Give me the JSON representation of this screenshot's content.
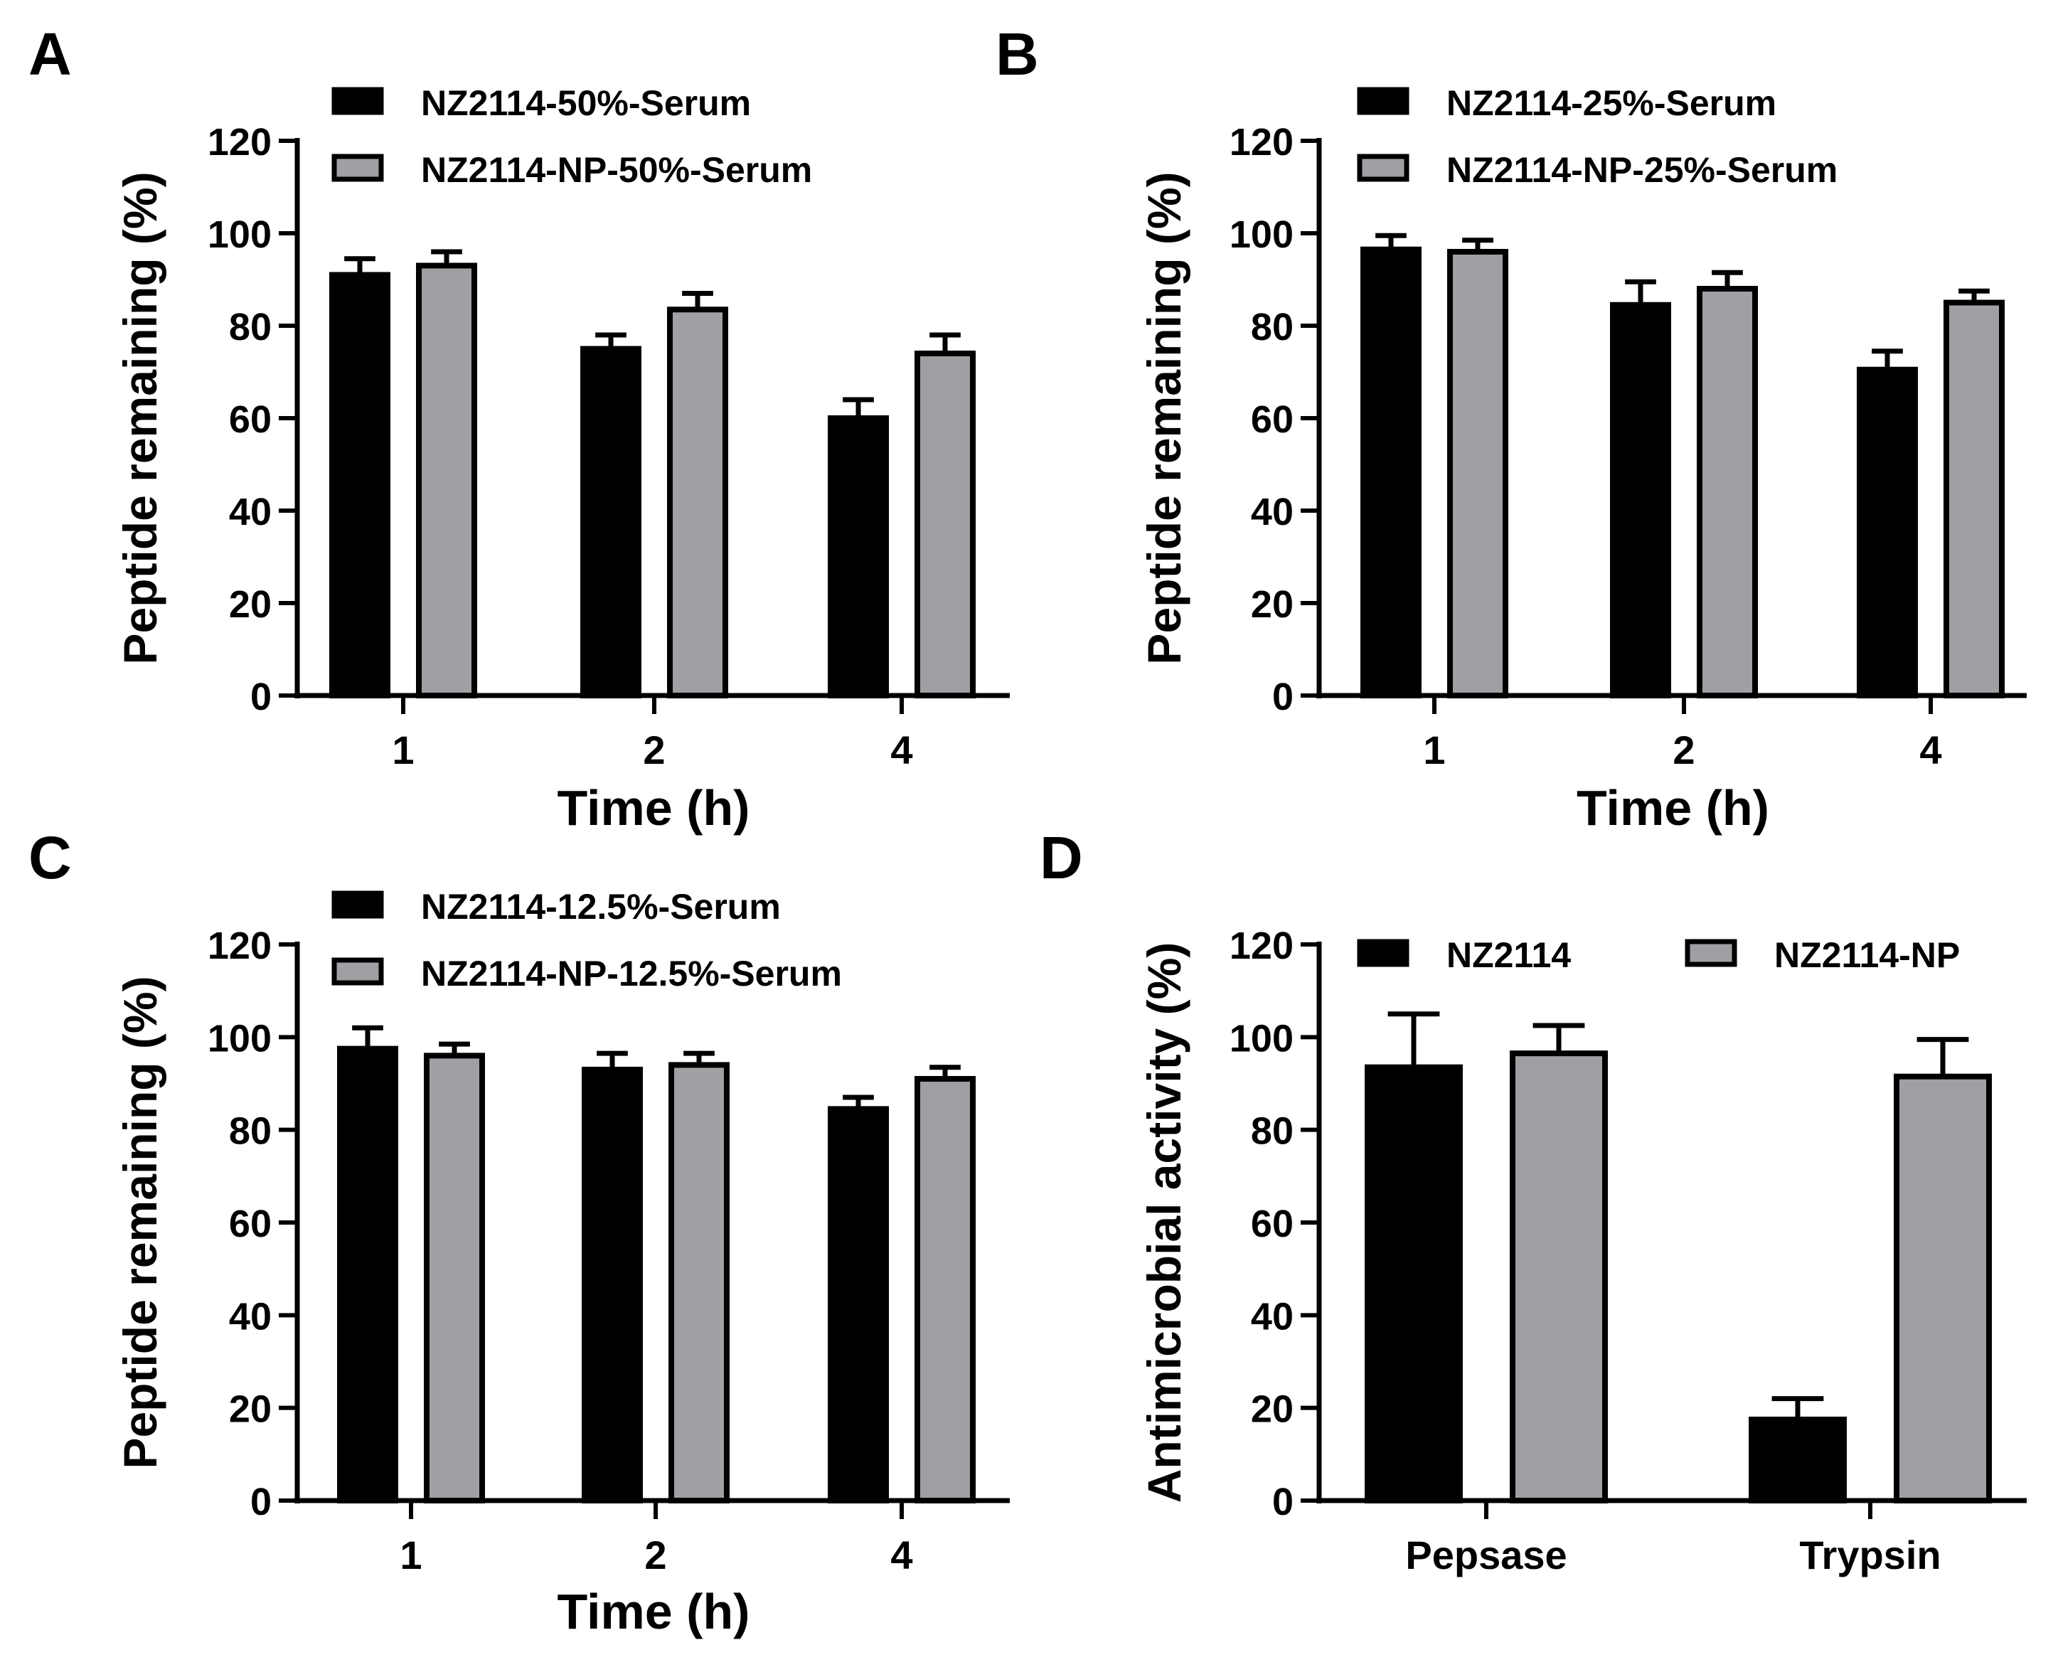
{
  "colors": {
    "series_1": "#000000",
    "series_2": "#a0a0a4",
    "axis": "#000000",
    "background": "#ffffff"
  },
  "chart_data": [
    {
      "panel_label": "A",
      "type": "bar",
      "title": "",
      "xlabel": "Time (h)",
      "ylabel": "Peptide remaining (%)",
      "ylim": [
        0,
        120
      ],
      "yticks": [
        "0",
        "20",
        "40",
        "60",
        "80",
        "100",
        "120"
      ],
      "categories": [
        "1",
        "2",
        "4"
      ],
      "legend_position": "top",
      "series": [
        {
          "name": "NZ2114-50%-Serum",
          "values": [
            91,
            75,
            60
          ],
          "errors": [
            3.5,
            3,
            4
          ]
        },
        {
          "name": "NZ2114-NP-50%-Serum",
          "values": [
            93,
            83.5,
            74
          ],
          "errors": [
            3,
            3.5,
            4
          ]
        }
      ]
    },
    {
      "panel_label": "B",
      "type": "bar",
      "title": "",
      "xlabel": "Time (h)",
      "ylabel": "Peptide remaining (%)",
      "ylim": [
        0,
        120
      ],
      "yticks": [
        "0",
        "20",
        "40",
        "60",
        "80",
        "100",
        "120"
      ],
      "categories": [
        "1",
        "2",
        "4"
      ],
      "legend_position": "top",
      "series": [
        {
          "name": "NZ2114-25%-Serum",
          "values": [
            96.5,
            84.5,
            70.5
          ],
          "errors": [
            3,
            5,
            4
          ]
        },
        {
          "name": "NZ2114-NP-25%-Serum",
          "values": [
            96,
            88,
            85
          ],
          "errors": [
            2.5,
            3.5,
            2.5
          ]
        }
      ]
    },
    {
      "panel_label": "C",
      "type": "bar",
      "title": "",
      "xlabel": "Time (h)",
      "ylabel": "Peptide remaining (%)",
      "ylim": [
        0,
        120
      ],
      "yticks": [
        "0",
        "20",
        "40",
        "60",
        "80",
        "100",
        "120"
      ],
      "categories": [
        "1",
        "2",
        "4"
      ],
      "legend_position": "top",
      "series": [
        {
          "name": "NZ2114-12.5%-Serum",
          "values": [
            97.5,
            93,
            84.5
          ],
          "errors": [
            4.5,
            3.5,
            2.5
          ]
        },
        {
          "name": "NZ2114-NP-12.5%-Serum",
          "values": [
            96,
            94,
            91
          ],
          "errors": [
            2.5,
            2.5,
            2.5
          ]
        }
      ]
    },
    {
      "panel_label": "D",
      "type": "bar",
      "title": "",
      "xlabel": "",
      "ylabel": "Antimicrobial activity (%)",
      "ylim": [
        0,
        120
      ],
      "yticks": [
        "0",
        "20",
        "40",
        "60",
        "80",
        "100",
        "120"
      ],
      "categories": [
        "Pepsase",
        "Trypsin"
      ],
      "legend_position": "top (single row)",
      "series": [
        {
          "name": "NZ2114",
          "values": [
            93.5,
            17.5
          ],
          "errors": [
            11.5,
            4.5
          ]
        },
        {
          "name": "NZ2114-NP",
          "values": [
            96.5,
            91.5
          ],
          "errors": [
            6,
            8
          ]
        }
      ]
    }
  ]
}
